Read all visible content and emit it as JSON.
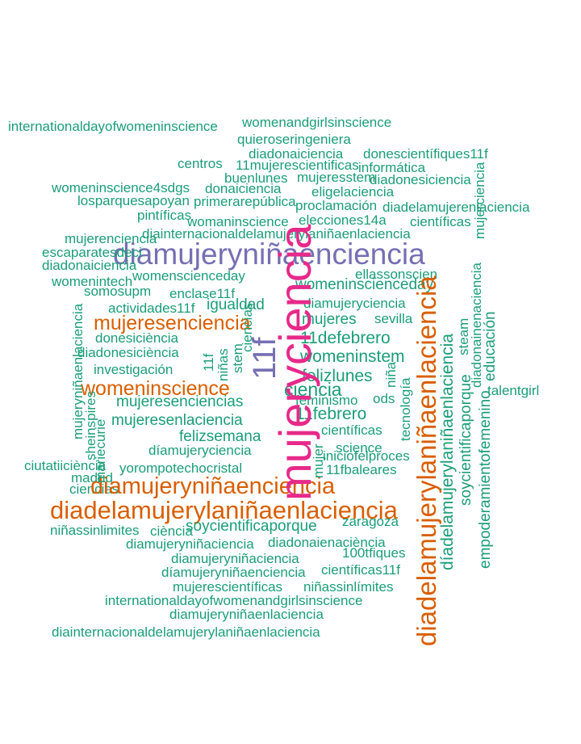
{
  "colors": {
    "green": "#1b9e77",
    "orange": "#d95f02",
    "purple": "#7570b3",
    "magenta": "#e7298a"
  },
  "words": {
    "w01": "internationaldayofwomeninscience",
    "w02": "womenandgirlsinscience",
    "w03": "quieroseringeniera",
    "w04": "diadonaiciencia",
    "w05": "donescientífiques11f",
    "w06": "centros",
    "w07": "11mujerescientificas",
    "w08": "informática",
    "w09": "buenlunes",
    "w10": "mujeresstem",
    "w11": "diadonesiciencia",
    "w12": "womeninscience4sdgs",
    "w13": "donaiciencia",
    "w14": "eligelaciencia",
    "w15": "losparquesapoyan",
    "w16": "primerarepública",
    "w17": "proclamación",
    "w18": "diadelamujerenlaciencia",
    "w19": "pintíficas",
    "w20": "womaninscience",
    "w21": "elecciones14a",
    "w22": "científicas",
    "w23": "diainternacionaldelamujerylaniñaenlaciencia",
    "w24": "mujerenciencia",
    "w25": "diamujeryniñaenciencia",
    "w26": "escaparatesdeci",
    "w27": "diadonaiciencia",
    "w28": "ellassonscien",
    "w29": "womenintech",
    "w30": "womenscienceday",
    "w31": "womeninscienceday",
    "w32": "somosupm",
    "w33": "enclase11f",
    "w34": "diamujeryciencia",
    "w35": "actividades11f",
    "w36": "igualdad",
    "w37": "mujeresenciencia",
    "w38": "mujeres",
    "w39": "sevilla",
    "w40": "donesiciència",
    "w41": "11defebrero",
    "w42": "diadonesiciència",
    "w43": "womeninstem",
    "w44": "investigación",
    "w45": "felizlunes",
    "w46": "womeninscience",
    "w47": "ciencia",
    "w48": "mujeresenciencias",
    "w49": "feminismo",
    "w50": "ods",
    "w51": "11febrero",
    "w52": "mujeresenlaciencia",
    "w53": "científicas",
    "w54": "felizsemana",
    "w55": "díamujeryciencia",
    "w56": "science",
    "w57": "iniciofelproces",
    "w58": "ciutatiiciència",
    "w59": "yorompotechocristal",
    "w60": "11fbaleares",
    "w61": "madrid",
    "w62": "ciencias",
    "w63": "diamujeryniñaenciencia",
    "w64": "diadelamujerylaniñaenlaciencia",
    "w65": "zaragoza",
    "w66": "niñassinlimites",
    "w67": "ciència",
    "w68": "soycientificaporque",
    "w69": "diamujeryniñaciencia",
    "w70": "diadonaienaciència",
    "w71": "100tfiques",
    "w72": "diamujeryniñaciencia",
    "w73": "díamujeryniñaenciencia",
    "w74": "científicas11f",
    "w75": "mujerescientíficas",
    "w76": "niñassinlímites",
    "w77": "internationaldayofwomenandgirlsinscience",
    "w78": "diamujeryniñaenlaciencia",
    "w79": "diainternacionaldelamujerylaniñaenlaciencia",
    "w80": "talentgirl",
    "v01": "mujeryciencia",
    "v02": "11f",
    "v03": "diadelamujerylaniñaenlaciencia",
    "v04": "díadelamujerylaniñaenlaciencia",
    "v05": "soycientificaporque",
    "v06": "empoderamientofemenino",
    "v07": "educación",
    "v08": "diadonainenaciencia",
    "v09": "steam",
    "v10": "mujeryniñaenlaciencia",
    "v11": "sheinspires",
    "v12": "mariecurie",
    "v13": "tecnología",
    "v14": "niña",
    "v15": "mujer",
    "v16": "niñas",
    "v17": "stem",
    "v18": "11f",
    "v19": "ciencias",
    "v20": "mujerciencia"
  }
}
